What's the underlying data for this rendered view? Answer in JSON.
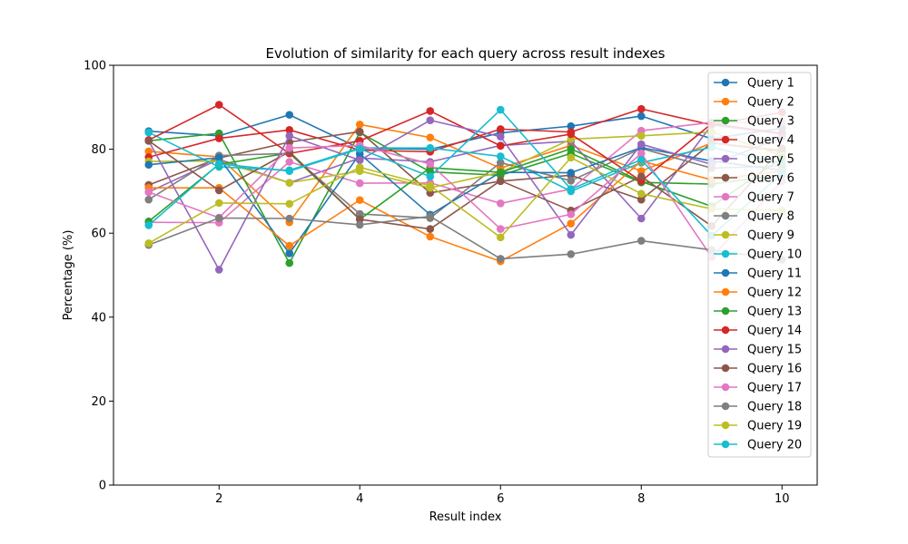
{
  "chart_data": {
    "type": "line",
    "title": "Evolution of similarity for each query across result indexes",
    "xlabel": "Result index",
    "ylabel": "Percentage (%)",
    "xlim": [
      0.5,
      10.5
    ],
    "ylim": [
      0,
      100
    ],
    "xticks": [
      2,
      4,
      6,
      8,
      10
    ],
    "yticks": [
      0,
      20,
      40,
      60,
      80,
      100
    ],
    "grid": false,
    "legend_position": "top-right",
    "x": [
      1,
      2,
      3,
      4,
      5,
      6,
      7,
      8,
      9,
      10
    ],
    "series": [
      {
        "name": "Query 1",
        "color": "#1f77b4",
        "values": [
          84.3,
          83.2,
          88.2,
          80.2,
          80.0,
          83.9,
          85.5,
          87.9,
          82.5,
          85.0
        ]
      },
      {
        "name": "Query 2",
        "color": "#ff7f0e",
        "values": [
          79.5,
          78.2,
          62.6,
          85.9,
          82.8,
          75.5,
          80.9,
          74.8,
          81.5,
          79.8
        ]
      },
      {
        "name": "Query 3",
        "color": "#2ca02c",
        "values": [
          82.0,
          83.8,
          52.9,
          84.0,
          74.6,
          73.8,
          79.0,
          72.1,
          71.7,
          73.9
        ]
      },
      {
        "name": "Query 4",
        "color": "#d62728",
        "values": [
          78.1,
          82.6,
          84.6,
          79.8,
          79.4,
          84.8,
          84.1,
          89.6,
          85.8,
          88.8
        ]
      },
      {
        "name": "Query 5",
        "color": "#9467bd",
        "values": [
          69.8,
          77.6,
          72.0,
          77.9,
          77.0,
          80.9,
          81.9,
          63.5,
          85.8,
          83.6
        ]
      },
      {
        "name": "Query 6",
        "color": "#8c564b",
        "values": [
          71.5,
          77.9,
          81.7,
          84.2,
          69.6,
          72.4,
          73.8,
          68.0,
          81.5,
          79.5
        ]
      },
      {
        "name": "Query 7",
        "color": "#e377c2",
        "values": [
          62.6,
          62.5,
          77.0,
          71.9,
          72.0,
          67.1,
          70.5,
          84.4,
          86.4,
          86.4
        ]
      },
      {
        "name": "Query 8",
        "color": "#7f7f7f",
        "values": [
          68.0,
          78.5,
          79.0,
          64.6,
          63.6,
          76.8,
          72.5,
          80.2,
          75.5,
          76.0
        ]
      },
      {
        "name": "Query 9",
        "color": "#bcbd22",
        "values": [
          77.1,
          77.2,
          72.0,
          74.8,
          70.8,
          74.5,
          82.4,
          83.2,
          84.1,
          78.5
        ]
      },
      {
        "name": "Query 10",
        "color": "#17becf",
        "values": [
          84.0,
          75.8,
          75.0,
          80.3,
          80.3,
          78.3,
          70.0,
          76.8,
          80.5,
          76.5
        ]
      },
      {
        "name": "Query 11",
        "color": "#1f77b4",
        "values": [
          76.3,
          78.0,
          55.2,
          78.9,
          64.4,
          74.5,
          74.4,
          80.4,
          77.2,
          75.0
        ]
      },
      {
        "name": "Query 12",
        "color": "#ff7f0e",
        "values": [
          70.8,
          70.8,
          57.0,
          67.9,
          59.2,
          53.3,
          62.3,
          77.2,
          72.7,
          74.8
        ]
      },
      {
        "name": "Query 13",
        "color": "#2ca02c",
        "values": [
          62.8,
          76.4,
          79.1,
          63.3,
          75.6,
          74.5,
          80.1,
          72.3,
          66.4,
          77.9
        ]
      },
      {
        "name": "Query 14",
        "color": "#d62728",
        "values": [
          82.2,
          90.6,
          79.0,
          82.0,
          89.1,
          80.8,
          83.6,
          72.4,
          86.1,
          83.8
        ]
      },
      {
        "name": "Query 15",
        "color": "#9467bd",
        "values": [
          82.0,
          51.3,
          83.2,
          77.4,
          86.9,
          83.0,
          59.6,
          81.2,
          76.4,
          82.8
        ]
      },
      {
        "name": "Query 16",
        "color": "#8c564b",
        "values": [
          82.0,
          70.2,
          79.4,
          63.3,
          61.0,
          72.5,
          65.4,
          73.5,
          61.7,
          80.2
        ]
      },
      {
        "name": "Query 17",
        "color": "#e377c2",
        "values": [
          69.8,
          63.7,
          80.3,
          80.9,
          76.5,
          61.0,
          64.5,
          79.0,
          54.3,
          72.4
        ]
      },
      {
        "name": "Query 18",
        "color": "#7f7f7f",
        "values": [
          57.2,
          63.6,
          63.5,
          62.0,
          64.0,
          53.9,
          55.0,
          58.2,
          56.0,
          53.7
        ]
      },
      {
        "name": "Query 19",
        "color": "#bcbd22",
        "values": [
          57.6,
          67.2,
          67.0,
          75.7,
          71.3,
          59.0,
          78.0,
          69.4,
          65.8,
          65.4
        ]
      },
      {
        "name": "Query 20",
        "color": "#17becf",
        "values": [
          61.9,
          76.5,
          74.8,
          80.1,
          73.5,
          89.4,
          70.5,
          77.5,
          59.4,
          74.2
        ]
      }
    ]
  }
}
